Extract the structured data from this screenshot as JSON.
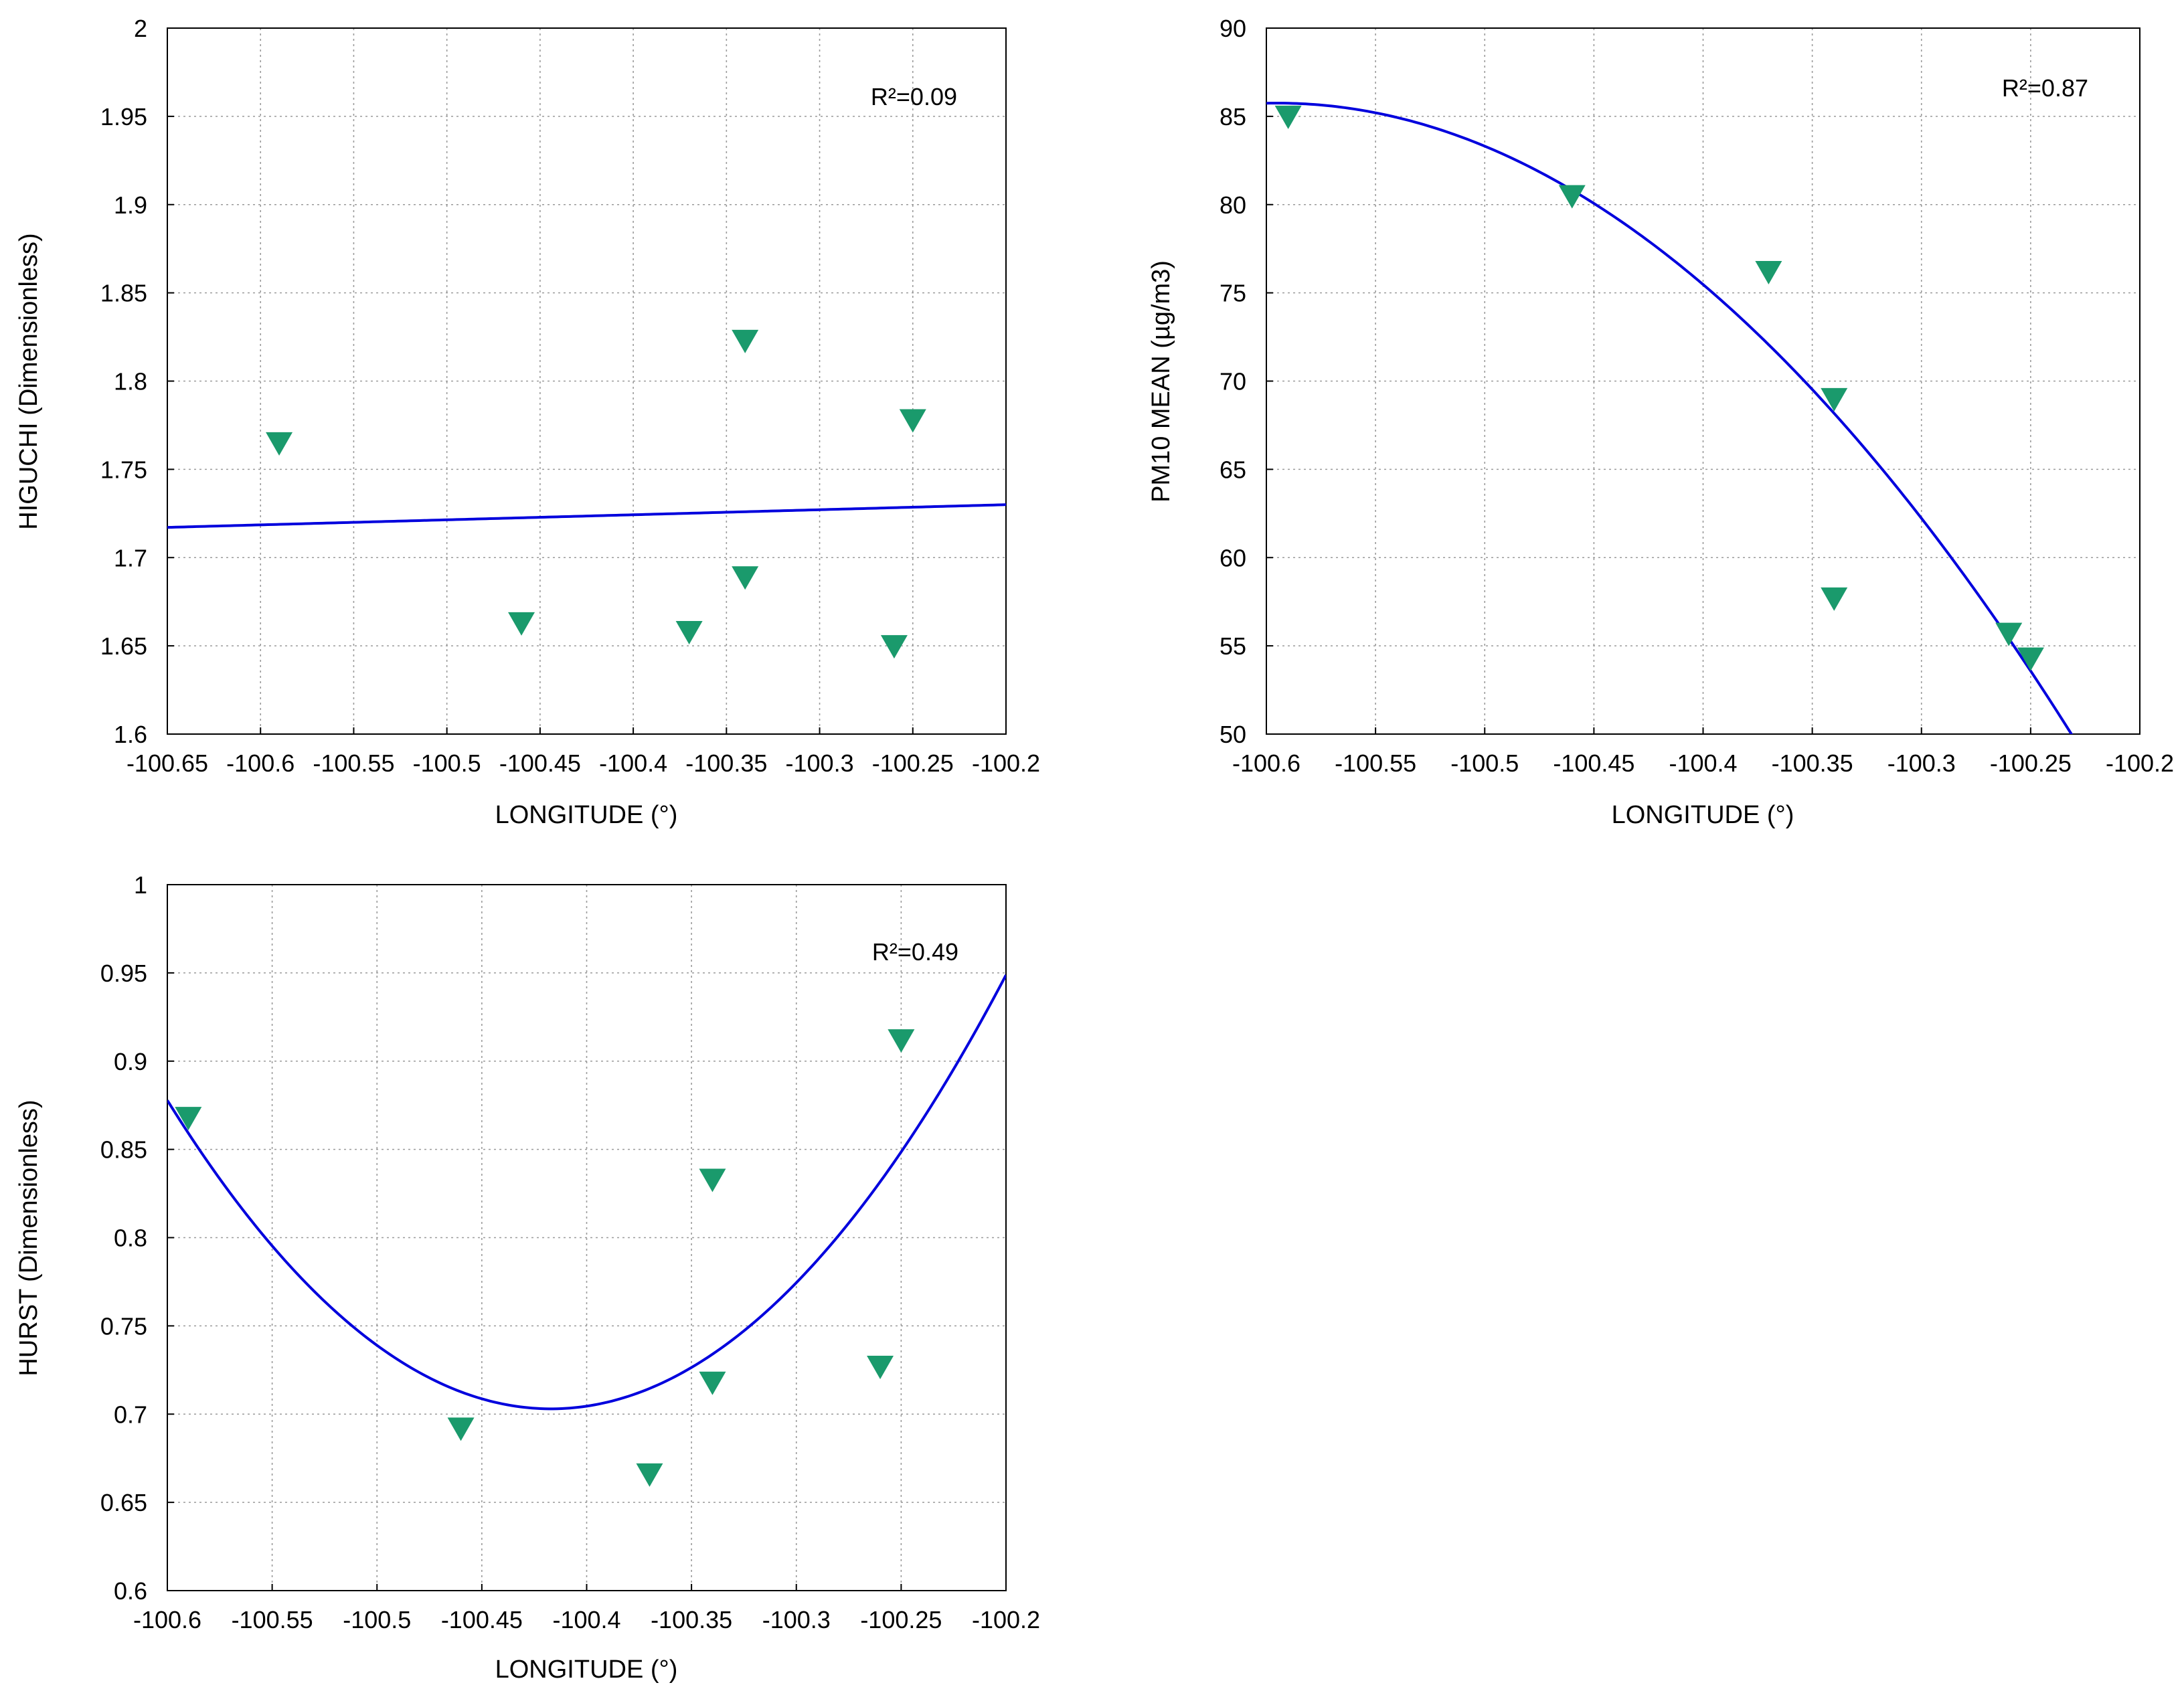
{
  "chart_data": [
    {
      "id": "higuchi",
      "type": "scatter",
      "title": "",
      "xlabel": "LONGITUDE (°)",
      "ylabel": "HIGUCHI (Dimensionless)",
      "xlim": [
        -100.65,
        -100.2
      ],
      "ylim": [
        1.6,
        2.0
      ],
      "xticks": [
        -100.65,
        -100.6,
        -100.55,
        -100.5,
        -100.45,
        -100.4,
        -100.35,
        -100.3,
        -100.25,
        -100.2
      ],
      "xtick_labels": [
        "-100.65",
        "-100.6",
        "-100.55",
        "-100.5",
        "-100.45",
        "-100.4",
        "-100.35",
        "-100.3",
        "-100.25",
        "-100.2"
      ],
      "yticks": [
        1.6,
        1.65,
        1.7,
        1.75,
        1.8,
        1.85,
        1.9,
        1.95,
        2.0
      ],
      "ytick_labels": [
        "1.6",
        "1.65",
        "1.7",
        "1.75",
        "1.8",
        "1.85",
        "1.9",
        "1.95",
        "2"
      ],
      "grid": true,
      "annotation": "R²=0.09",
      "marker_color": "#1a9a6c",
      "line_color": "#0000dd",
      "points": [
        {
          "x": -100.59,
          "y": 1.765
        },
        {
          "x": -100.46,
          "y": 1.663
        },
        {
          "x": -100.37,
          "y": 1.658
        },
        {
          "x": -100.34,
          "y": 1.823
        },
        {
          "x": -100.34,
          "y": 1.689
        },
        {
          "x": -100.26,
          "y": 1.65
        },
        {
          "x": -100.25,
          "y": 1.778
        }
      ],
      "fit": {
        "kind": "poly",
        "coef": [
          4.5957,
          0.0286
        ],
        "range": [
          -100.65,
          -100.2
        ]
      }
    },
    {
      "id": "pm10",
      "type": "scatter",
      "title": "",
      "xlabel": "LONGITUDE (°)",
      "ylabel": "PM10 MEAN (µg/m3)",
      "xlim": [
        -100.6,
        -100.2
      ],
      "ylim": [
        50,
        90
      ],
      "xticks": [
        -100.6,
        -100.55,
        -100.5,
        -100.45,
        -100.4,
        -100.35,
        -100.3,
        -100.25,
        -100.2
      ],
      "xtick_labels": [
        "-100.6",
        "-100.55",
        "-100.5",
        "-100.45",
        "-100.4",
        "-100.35",
        "-100.3",
        "-100.25",
        "-100.2"
      ],
      "yticks": [
        50,
        55,
        60,
        65,
        70,
        75,
        80,
        85,
        90
      ],
      "ytick_labels": [
        "50",
        "55",
        "60",
        "65",
        "70",
        "75",
        "80",
        "85",
        "90"
      ],
      "grid": true,
      "annotation": "R²=0.87",
      "marker_color": "#1a9a6c",
      "line_color": "#0000dd",
      "points": [
        {
          "x": -100.59,
          "y": 85.0
        },
        {
          "x": -100.46,
          "y": 80.5
        },
        {
          "x": -100.37,
          "y": 76.2
        },
        {
          "x": -100.34,
          "y": 69.0
        },
        {
          "x": -100.34,
          "y": 57.7
        },
        {
          "x": -100.26,
          "y": 55.7
        },
        {
          "x": -100.25,
          "y": 54.3
        }
      ],
      "fit": {
        "kind": "quad_vertex",
        "h": -100.595,
        "k": 85.75,
        "a": -270.3,
        "range": [
          -100.6,
          -100.2
        ]
      }
    },
    {
      "id": "hurst",
      "type": "scatter",
      "title": "",
      "xlabel": "LONGITUDE (°)",
      "ylabel": "HURST (Dimensionless)",
      "xlim": [
        -100.6,
        -100.2
      ],
      "ylim": [
        0.6,
        1.0
      ],
      "xticks": [
        -100.6,
        -100.55,
        -100.5,
        -100.45,
        -100.4,
        -100.35,
        -100.3,
        -100.25,
        -100.2
      ],
      "xtick_labels": [
        "-100.6",
        "-100.55",
        "-100.5",
        "-100.45",
        "-100.4",
        "-100.35",
        "-100.3",
        "-100.25",
        "-100.2"
      ],
      "yticks": [
        0.6,
        0.65,
        0.7,
        0.75,
        0.8,
        0.85,
        0.9,
        0.95,
        1.0
      ],
      "ytick_labels": [
        "0.6",
        "0.65",
        "0.7",
        "0.75",
        "0.8",
        "0.85",
        "0.9",
        "0.95",
        "1"
      ],
      "grid": true,
      "annotation": "R²=0.49",
      "marker_color": "#1a9a6c",
      "line_color": "#0000dd",
      "points": [
        {
          "x": -100.59,
          "y": 0.868
        },
        {
          "x": -100.46,
          "y": 0.692
        },
        {
          "x": -100.37,
          "y": 0.666
        },
        {
          "x": -100.34,
          "y": 0.833
        },
        {
          "x": -100.34,
          "y": 0.718
        },
        {
          "x": -100.26,
          "y": 0.727
        },
        {
          "x": -100.25,
          "y": 0.912
        }
      ],
      "fit": {
        "kind": "quad_vertex",
        "h": -100.417,
        "k": 0.703,
        "a": 5.22,
        "range": [
          -100.6,
          -100.2
        ]
      }
    }
  ]
}
